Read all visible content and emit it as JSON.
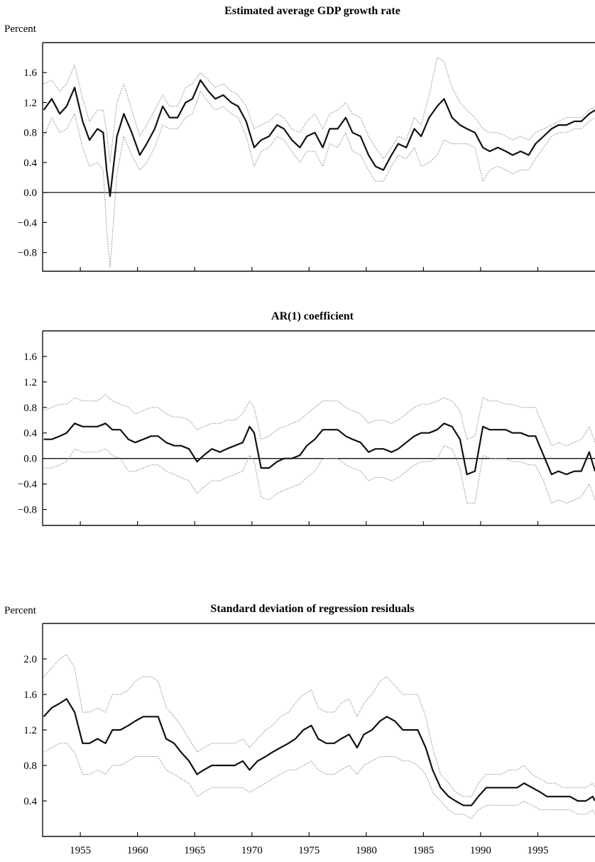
{
  "chart_data": [
    {
      "type": "line",
      "title": "Estimated average GDP growth rate",
      "ylabel": "Percent",
      "xlim": [
        1951.7,
        2000.0
      ],
      "ylim": [
        -1.05,
        2.0
      ],
      "yticks": [
        -0.8,
        -0.4,
        0.0,
        0.4,
        0.8,
        1.2,
        1.6
      ],
      "ytick_labels": [
        "−0.8",
        "−0.4",
        "0.0",
        "0.4",
        "0.8",
        "1.2",
        "1.6"
      ],
      "xticks": [
        1955,
        1960,
        1965,
        1970,
        1975,
        1980,
        1985,
        1990,
        1995
      ],
      "zero_line": true,
      "x": [
        1951.8,
        1952.5,
        1953.2,
        1953.8,
        1954.5,
        1955.2,
        1955.8,
        1956.5,
        1957.0,
        1957.3,
        1957.6,
        1958.2,
        1958.8,
        1959.5,
        1960.2,
        1960.8,
        1961.5,
        1962.2,
        1962.8,
        1963.5,
        1964.2,
        1964.8,
        1965.5,
        1966.2,
        1966.8,
        1967.5,
        1968.2,
        1968.8,
        1969.5,
        1970.2,
        1970.8,
        1971.5,
        1972.2,
        1972.8,
        1973.5,
        1974.2,
        1974.8,
        1975.5,
        1976.2,
        1976.8,
        1977.5,
        1978.2,
        1978.8,
        1979.5,
        1980.2,
        1980.8,
        1981.5,
        1982.2,
        1982.8,
        1983.5,
        1984.2,
        1984.8,
        1985.5,
        1986.2,
        1986.8,
        1987.5,
        1988.2,
        1988.8,
        1989.5,
        1990.2,
        1990.8,
        1991.5,
        1992.2,
        1992.8,
        1993.5,
        1994.2,
        1994.8,
        1995.5,
        1996.2,
        1996.8,
        1997.5,
        1998.2,
        1998.8,
        1999.5,
        2000.0
      ],
      "series": [
        {
          "role": "estimate",
          "color": "#111111",
          "values": [
            1.1,
            1.25,
            1.05,
            1.15,
            1.4,
            0.95,
            0.7,
            0.85,
            0.8,
            0.3,
            -0.05,
            0.75,
            1.05,
            0.8,
            0.5,
            0.65,
            0.85,
            1.15,
            1.0,
            1.0,
            1.2,
            1.25,
            1.5,
            1.35,
            1.25,
            1.3,
            1.2,
            1.15,
            0.95,
            0.6,
            0.7,
            0.75,
            0.9,
            0.85,
            0.7,
            0.6,
            0.75,
            0.8,
            0.6,
            0.85,
            0.85,
            1.0,
            0.8,
            0.75,
            0.5,
            0.35,
            0.3,
            0.5,
            0.65,
            0.6,
            0.85,
            0.75,
            1.0,
            1.15,
            1.25,
            1.0,
            0.9,
            0.85,
            0.8,
            0.6,
            0.55,
            0.6,
            0.55,
            0.5,
            0.55,
            0.5,
            0.65,
            0.75,
            0.85,
            0.9,
            0.9,
            0.95,
            0.95,
            1.05,
            1.1
          ]
        },
        {
          "role": "upper band",
          "color": "#9a9a9a",
          "values": [
            1.45,
            1.5,
            1.35,
            1.45,
            1.7,
            1.25,
            0.95,
            1.1,
            1.1,
            0.8,
            0.4,
            1.2,
            1.45,
            1.1,
            0.75,
            0.9,
            1.1,
            1.3,
            1.15,
            1.15,
            1.4,
            1.45,
            1.6,
            1.5,
            1.4,
            1.45,
            1.35,
            1.3,
            1.15,
            0.85,
            0.9,
            0.95,
            1.05,
            1.0,
            0.85,
            0.8,
            0.95,
            1.05,
            0.85,
            1.05,
            1.1,
            1.2,
            1.05,
            1.0,
            0.75,
            0.6,
            0.45,
            0.6,
            0.75,
            0.7,
            1.0,
            0.9,
            1.3,
            1.8,
            1.75,
            1.4,
            1.2,
            1.1,
            1.0,
            0.85,
            0.8,
            0.8,
            0.75,
            0.7,
            0.75,
            0.7,
            0.8,
            0.85,
            0.9,
            0.95,
            1.0,
            1.0,
            1.0,
            1.1,
            1.15
          ]
        },
        {
          "role": "lower band",
          "color": "#9a9a9a",
          "values": [
            0.75,
            1.0,
            0.8,
            0.85,
            1.05,
            0.6,
            0.35,
            0.4,
            0.3,
            -0.5,
            -1.0,
            0.25,
            0.75,
            0.5,
            0.3,
            0.4,
            0.6,
            0.9,
            0.85,
            0.85,
            1.0,
            1.05,
            1.35,
            1.2,
            1.1,
            1.15,
            1.05,
            1.0,
            0.75,
            0.35,
            0.55,
            0.6,
            0.75,
            0.7,
            0.55,
            0.4,
            0.55,
            0.55,
            0.35,
            0.65,
            0.6,
            0.8,
            0.55,
            0.5,
            0.3,
            0.15,
            0.15,
            0.35,
            0.5,
            0.45,
            0.6,
            0.35,
            0.4,
            0.5,
            0.7,
            0.65,
            0.65,
            0.65,
            0.6,
            0.15,
            0.3,
            0.35,
            0.3,
            0.25,
            0.3,
            0.3,
            0.45,
            0.6,
            0.75,
            0.8,
            0.8,
            0.85,
            0.85,
            0.95,
            1.0
          ]
        }
      ]
    },
    {
      "type": "line",
      "title": "AR(1) coefficient",
      "ylabel": "",
      "xlim": [
        1951.7,
        2000.0
      ],
      "ylim": [
        -1.05,
        2.0
      ],
      "yticks": [
        -0.8,
        -0.4,
        0.0,
        0.4,
        0.8,
        1.2,
        1.6
      ],
      "ytick_labels": [
        "−0.8",
        "−0.4",
        "0.0",
        "0.4",
        "0.8",
        "1.2",
        "1.6"
      ],
      "xticks": [
        1955,
        1960,
        1965,
        1970,
        1975,
        1980,
        1985,
        1990,
        1995
      ],
      "zero_line": true,
      "x": [
        1951.8,
        1952.5,
        1953.2,
        1953.8,
        1954.5,
        1955.2,
        1955.8,
        1956.5,
        1957.2,
        1957.8,
        1958.5,
        1959.2,
        1959.8,
        1960.5,
        1961.2,
        1961.8,
        1962.5,
        1963.2,
        1963.8,
        1964.5,
        1965.2,
        1965.8,
        1966.5,
        1967.2,
        1967.8,
        1968.5,
        1969.2,
        1969.8,
        1970.2,
        1970.8,
        1971.5,
        1972.2,
        1972.8,
        1973.5,
        1974.2,
        1974.8,
        1975.5,
        1976.2,
        1976.8,
        1977.5,
        1978.2,
        1978.8,
        1979.5,
        1980.2,
        1980.8,
        1981.5,
        1982.2,
        1982.8,
        1983.5,
        1984.2,
        1984.8,
        1985.5,
        1986.2,
        1986.8,
        1987.5,
        1988.2,
        1988.8,
        1989.5,
        1990.2,
        1990.8,
        1991.5,
        1992.2,
        1992.8,
        1993.5,
        1994.2,
        1994.8,
        1995.5,
        1996.2,
        1996.8,
        1997.5,
        1998.2,
        1998.8,
        1999.5,
        2000.0
      ],
      "series": [
        {
          "role": "estimate",
          "color": "#111111",
          "values": [
            0.3,
            0.3,
            0.35,
            0.4,
            0.55,
            0.5,
            0.5,
            0.5,
            0.55,
            0.45,
            0.45,
            0.3,
            0.25,
            0.3,
            0.35,
            0.35,
            0.25,
            0.2,
            0.2,
            0.15,
            -0.05,
            0.05,
            0.15,
            0.1,
            0.15,
            0.2,
            0.25,
            0.5,
            0.4,
            -0.15,
            -0.15,
            -0.05,
            0.0,
            0.0,
            0.05,
            0.2,
            0.3,
            0.45,
            0.45,
            0.45,
            0.35,
            0.3,
            0.25,
            0.1,
            0.15,
            0.15,
            0.1,
            0.15,
            0.25,
            0.35,
            0.4,
            0.4,
            0.45,
            0.55,
            0.5,
            0.3,
            -0.25,
            -0.2,
            0.5,
            0.45,
            0.45,
            0.45,
            0.4,
            0.4,
            0.35,
            0.35,
            0.05,
            -0.25,
            -0.2,
            -0.25,
            -0.2,
            -0.2,
            0.1,
            -0.2
          ]
        },
        {
          "role": "upper band",
          "color": "#9a9a9a",
          "values": [
            0.75,
            0.8,
            0.85,
            0.85,
            0.95,
            0.9,
            0.9,
            0.9,
            1.0,
            0.9,
            0.85,
            0.8,
            0.7,
            0.75,
            0.8,
            0.8,
            0.7,
            0.65,
            0.65,
            0.6,
            0.45,
            0.5,
            0.55,
            0.55,
            0.6,
            0.6,
            0.7,
            0.9,
            0.8,
            0.3,
            0.35,
            0.45,
            0.5,
            0.55,
            0.6,
            0.7,
            0.8,
            0.9,
            0.9,
            0.9,
            0.8,
            0.75,
            0.7,
            0.55,
            0.6,
            0.6,
            0.55,
            0.6,
            0.7,
            0.8,
            0.85,
            0.85,
            0.9,
            0.95,
            0.9,
            0.75,
            0.3,
            0.35,
            0.95,
            0.9,
            0.9,
            0.85,
            0.85,
            0.8,
            0.8,
            0.8,
            0.5,
            0.2,
            0.25,
            0.2,
            0.25,
            0.3,
            0.5,
            0.25
          ]
        },
        {
          "role": "lower band",
          "color": "#9a9a9a",
          "values": [
            -0.15,
            -0.15,
            -0.1,
            -0.05,
            0.15,
            0.1,
            0.1,
            0.1,
            0.15,
            0.05,
            0.0,
            -0.2,
            -0.2,
            -0.15,
            -0.1,
            -0.1,
            -0.2,
            -0.25,
            -0.3,
            -0.35,
            -0.55,
            -0.45,
            -0.35,
            -0.35,
            -0.3,
            -0.25,
            -0.2,
            0.05,
            -0.05,
            -0.6,
            -0.65,
            -0.55,
            -0.5,
            -0.45,
            -0.4,
            -0.3,
            -0.2,
            0.0,
            0.0,
            0.0,
            -0.1,
            -0.15,
            -0.2,
            -0.35,
            -0.3,
            -0.3,
            -0.35,
            -0.3,
            -0.2,
            -0.1,
            -0.05,
            -0.05,
            0.0,
            0.2,
            0.15,
            -0.15,
            -0.7,
            -0.7,
            0.05,
            0.0,
            0.0,
            0.0,
            -0.05,
            -0.05,
            -0.1,
            -0.1,
            -0.35,
            -0.7,
            -0.65,
            -0.7,
            -0.65,
            -0.6,
            -0.4,
            -0.65
          ]
        }
      ]
    },
    {
      "type": "line",
      "title": "Standard deviation of regression residuals",
      "ylabel": "Percent",
      "xlim": [
        1951.7,
        2000.0
      ],
      "ylim": [
        0.0,
        2.4
      ],
      "yticks": [
        0.4,
        0.8,
        1.2,
        1.6,
        2.0
      ],
      "ytick_labels": [
        "0.4",
        "0.8",
        "1.2",
        "1.6",
        "2.0"
      ],
      "xticks": [
        1955,
        1960,
        1965,
        1970,
        1975,
        1980,
        1985,
        1990,
        1995
      ],
      "xtick_labels": [
        "1955",
        "1960",
        "1965",
        "1970",
        "1975",
        "1980",
        "1985",
        "1990",
        "1995"
      ],
      "zero_line": false,
      "x": [
        1951.8,
        1952.5,
        1953.2,
        1953.8,
        1954.5,
        1955.2,
        1955.8,
        1956.5,
        1957.2,
        1957.8,
        1958.5,
        1959.2,
        1959.8,
        1960.5,
        1961.2,
        1961.8,
        1962.5,
        1963.2,
        1963.8,
        1964.5,
        1965.2,
        1965.8,
        1966.5,
        1967.2,
        1967.8,
        1968.5,
        1969.2,
        1969.8,
        1970.5,
        1971.2,
        1971.8,
        1972.5,
        1973.2,
        1973.8,
        1974.5,
        1975.2,
        1975.8,
        1976.5,
        1977.2,
        1977.8,
        1978.5,
        1979.2,
        1979.8,
        1980.5,
        1981.2,
        1981.8,
        1982.5,
        1983.2,
        1983.8,
        1984.5,
        1985.2,
        1985.8,
        1986.5,
        1987.2,
        1987.8,
        1988.5,
        1989.2,
        1989.8,
        1990.5,
        1991.2,
        1991.8,
        1992.5,
        1993.2,
        1993.8,
        1994.5,
        1995.2,
        1995.8,
        1996.5,
        1997.2,
        1997.8,
        1998.5,
        1999.2,
        1999.8,
        2000.0
      ],
      "series": [
        {
          "role": "estimate",
          "color": "#111111",
          "values": [
            1.35,
            1.45,
            1.5,
            1.55,
            1.4,
            1.05,
            1.05,
            1.1,
            1.05,
            1.2,
            1.2,
            1.25,
            1.3,
            1.35,
            1.35,
            1.35,
            1.1,
            1.05,
            0.95,
            0.85,
            0.7,
            0.75,
            0.8,
            0.8,
            0.8,
            0.8,
            0.85,
            0.75,
            0.85,
            0.9,
            0.95,
            1.0,
            1.05,
            1.1,
            1.2,
            1.25,
            1.1,
            1.05,
            1.05,
            1.1,
            1.15,
            1.0,
            1.15,
            1.2,
            1.3,
            1.35,
            1.3,
            1.2,
            1.2,
            1.2,
            1.0,
            0.75,
            0.55,
            0.45,
            0.4,
            0.35,
            0.35,
            0.45,
            0.55,
            0.55,
            0.55,
            0.55,
            0.55,
            0.6,
            0.55,
            0.5,
            0.45,
            0.45,
            0.45,
            0.45,
            0.4,
            0.4,
            0.45,
            0.4
          ]
        },
        {
          "role": "upper band",
          "color": "#9a9a9a",
          "values": [
            1.8,
            1.9,
            2.0,
            2.05,
            1.9,
            1.4,
            1.4,
            1.45,
            1.4,
            1.6,
            1.6,
            1.65,
            1.75,
            1.8,
            1.8,
            1.75,
            1.45,
            1.35,
            1.25,
            1.1,
            0.95,
            1.0,
            1.05,
            1.05,
            1.05,
            1.05,
            1.1,
            1.0,
            1.1,
            1.2,
            1.25,
            1.35,
            1.4,
            1.5,
            1.6,
            1.65,
            1.45,
            1.4,
            1.4,
            1.5,
            1.55,
            1.35,
            1.5,
            1.6,
            1.75,
            1.8,
            1.7,
            1.6,
            1.6,
            1.6,
            1.35,
            1.0,
            0.7,
            0.6,
            0.5,
            0.45,
            0.45,
            0.6,
            0.7,
            0.7,
            0.7,
            0.75,
            0.75,
            0.8,
            0.7,
            0.65,
            0.6,
            0.6,
            0.55,
            0.55,
            0.55,
            0.55,
            0.6,
            0.55
          ]
        },
        {
          "role": "lower band",
          "color": "#9a9a9a",
          "values": [
            0.95,
            1.0,
            1.05,
            1.05,
            0.95,
            0.7,
            0.7,
            0.75,
            0.7,
            0.8,
            0.8,
            0.85,
            0.9,
            0.9,
            0.9,
            0.9,
            0.75,
            0.7,
            0.65,
            0.6,
            0.45,
            0.5,
            0.55,
            0.55,
            0.55,
            0.55,
            0.55,
            0.5,
            0.55,
            0.6,
            0.65,
            0.7,
            0.75,
            0.75,
            0.8,
            0.85,
            0.75,
            0.7,
            0.7,
            0.75,
            0.8,
            0.7,
            0.8,
            0.85,
            0.9,
            0.9,
            0.9,
            0.85,
            0.85,
            0.8,
            0.7,
            0.5,
            0.4,
            0.3,
            0.25,
            0.25,
            0.2,
            0.3,
            0.35,
            0.35,
            0.35,
            0.35,
            0.35,
            0.4,
            0.35,
            0.3,
            0.3,
            0.3,
            0.3,
            0.3,
            0.25,
            0.25,
            0.3,
            0.25
          ]
        }
      ]
    }
  ]
}
